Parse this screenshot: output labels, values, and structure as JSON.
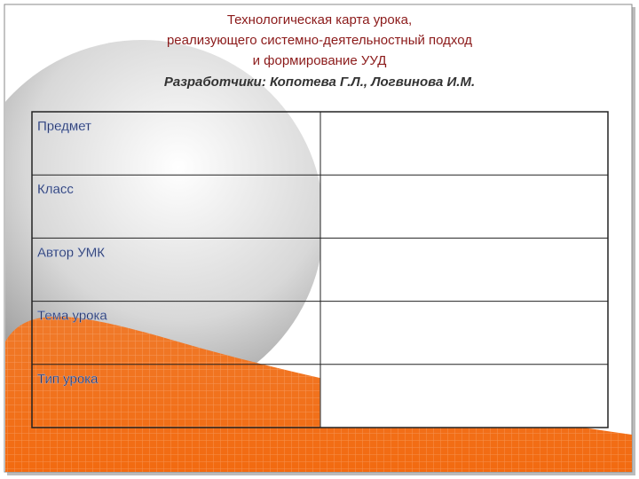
{
  "header": {
    "title_lines": [
      "Технологическая карта урока,",
      "реализующего системно-деятельностный подход",
      "и формирование УУД"
    ],
    "authors": "Разработчики: Копотева Г.Л., Логвинова И.М."
  },
  "table": {
    "rows": [
      [
        "Предмет"
      ],
      [
        "Класс"
      ],
      [
        "Автор УМК"
      ],
      [
        "Тема урока"
      ],
      [
        "Тип урока"
      ]
    ]
  }
}
